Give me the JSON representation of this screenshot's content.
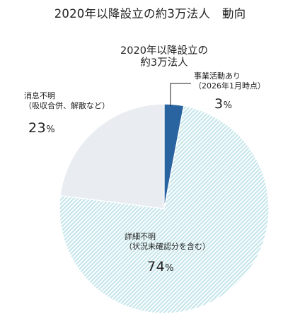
{
  "title": "2020年以降設立の約3万法人　動向",
  "center_label": [
    "2020年以降設立の",
    "約3万法人"
  ],
  "colors": {
    "active": "#2a64a0",
    "active_stroke": "#1e4f85",
    "unknown_bg": "#f4fafb",
    "unknown_hatch": "#8fcfd6",
    "closed": "#e9edf1",
    "leader": "#222222"
  },
  "chart_data": {
    "type": "pie",
    "title": "2020年以降設立の約3万法人　動向",
    "slices": [
      {
        "name": "事業活動あり",
        "note": "（2026年1月時点）",
        "value": 3,
        "pct_label": "3",
        "pattern": "solid",
        "color": "#2a64a0"
      },
      {
        "name": "詳細不明",
        "note": "（状況未確認分を含む）",
        "value": 74,
        "pct_label": "74",
        "pattern": "hatch",
        "color": "#8fcfd6"
      },
      {
        "name": "消息不明",
        "note": "（吸収合併、解散など）",
        "value": 23,
        "pct_label": "23",
        "pattern": "solid",
        "color": "#e9edf1"
      }
    ],
    "unit": "%",
    "start_angle": "12 o'clock",
    "direction": "clockwise"
  }
}
